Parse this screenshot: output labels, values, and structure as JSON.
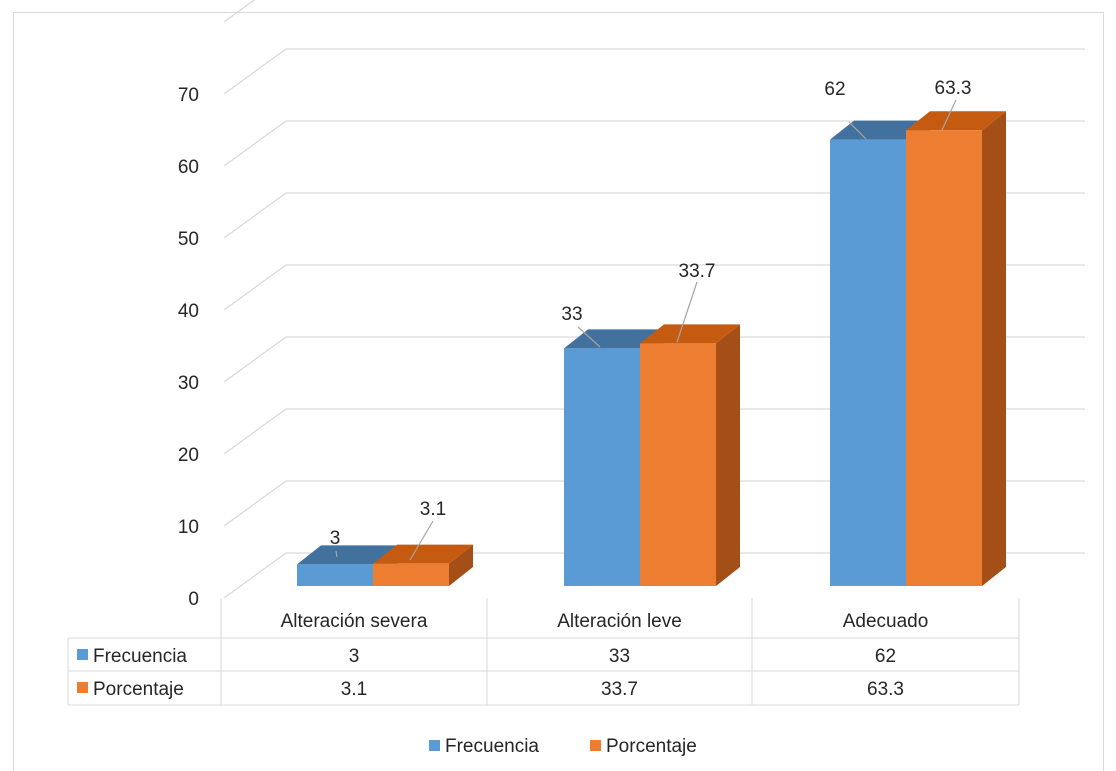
{
  "chart_data": {
    "type": "bar",
    "categories": [
      "Alteración severa",
      "Alteración leve",
      "Adecuado"
    ],
    "series": [
      {
        "name": "Frecuencia",
        "values": [
          3,
          33,
          62
        ],
        "labels": [
          "3",
          "33",
          "62"
        ]
      },
      {
        "name": "Porcentaje",
        "values": [
          3.1,
          33.7,
          63.3
        ],
        "labels": [
          "3.1",
          "33.7",
          "63.3"
        ]
      }
    ],
    "yticks": [
      "0",
      "10",
      "20",
      "30",
      "40",
      "50",
      "60",
      "70"
    ],
    "ylim": [
      0,
      70
    ],
    "grid": true,
    "legend_position": "bottom",
    "data_table": true,
    "style": "3d-clustered-column"
  },
  "colors": {
    "Frecuencia": "#5b9bd5",
    "Frecuencia_top": "#41719c",
    "Frecuencia_side": "#4a7fb1",
    "Porcentaje": "#ed7d31",
    "Porcentaje_top": "#c55a11",
    "Porcentaje_side": "#a44f18",
    "grid": "#d9d9d9",
    "text": "#262626"
  }
}
